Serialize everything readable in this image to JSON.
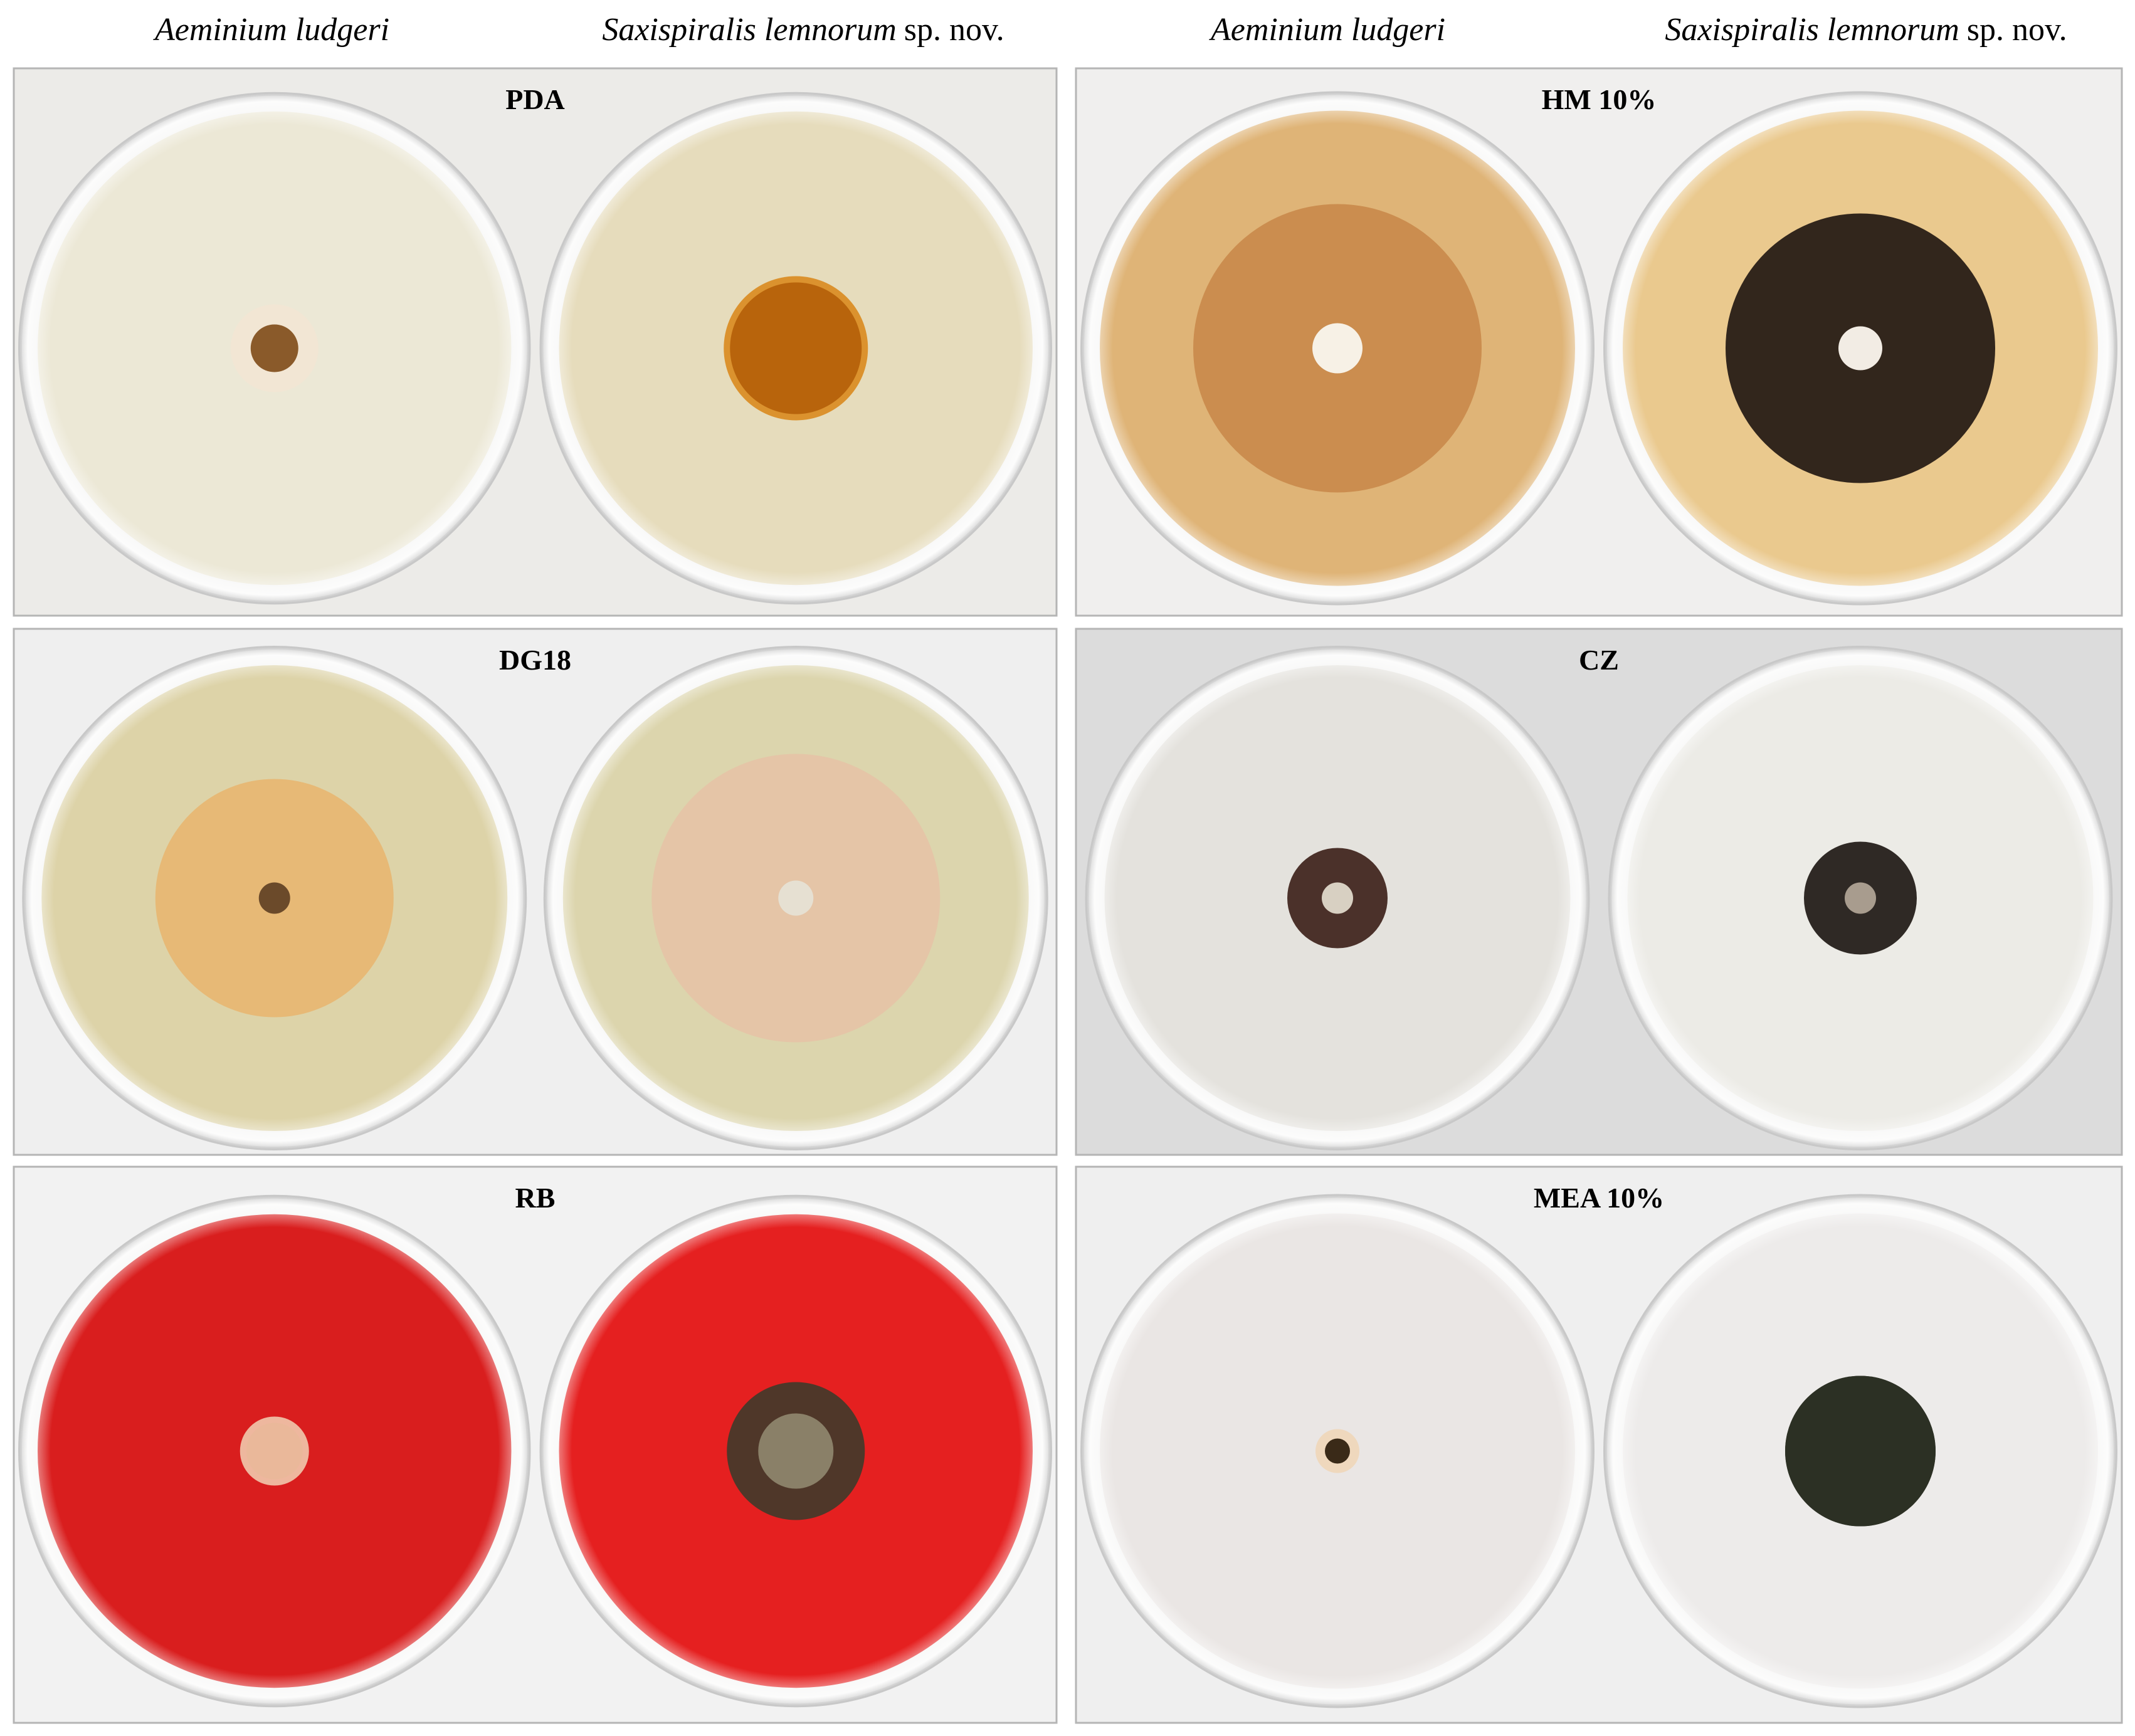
{
  "header": [
    {
      "species": "Aeminium ludgeri"
    },
    {
      "species": "Saxispiralis lemnorum",
      "suffix": "sp. nov."
    },
    {
      "species": "Aeminium ludgeri"
    },
    {
      "species": "Saxispiralis lemnorum",
      "suffix": "sp. nov."
    }
  ],
  "panels": [
    {
      "label": "PDA"
    },
    {
      "label": "HM 10%"
    },
    {
      "label": "DG18"
    },
    {
      "label": "CZ"
    },
    {
      "label": "RB"
    },
    {
      "label": "MEA 10%"
    }
  ]
}
